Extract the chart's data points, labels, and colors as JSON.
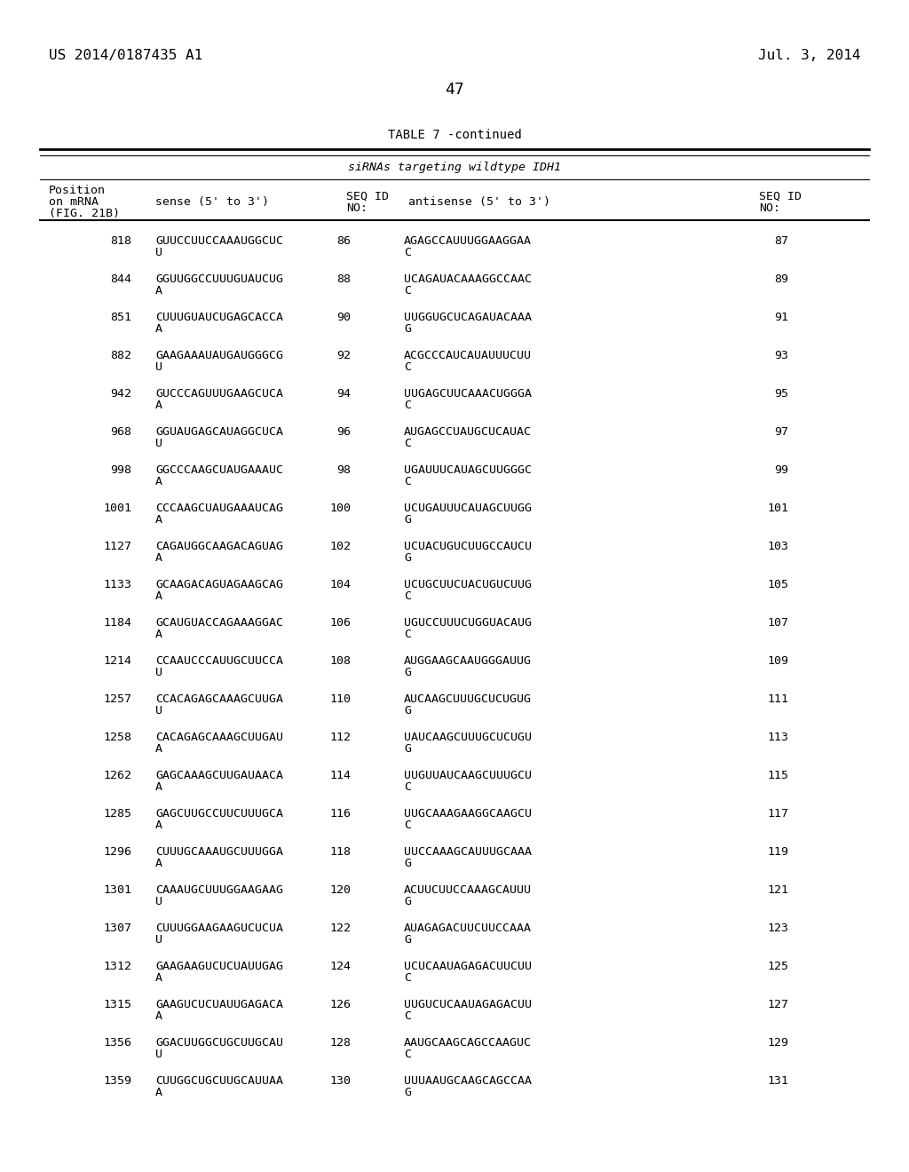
{
  "header_left": "US 2014/0187435 A1",
  "header_right": "Jul. 3, 2014",
  "page_number": "47",
  "table_title": "TABLE 7 -continued",
  "table_subtitle": "siRNAs targeting wildtype IDH1",
  "rows": [
    [
      "818",
      "GUUCCUUCCAAAUGGCUC\nU",
      "86",
      "AGAGCCAUUUGGAAGGAA\nC",
      "87"
    ],
    [
      "844",
      "GGUUGGCCUUUGUAUCUG\nA",
      "88",
      "UCAGAUACAAAGGCCAAC\nC",
      "89"
    ],
    [
      "851",
      "CUUUGUAUCUGAGCACCA\nA",
      "90",
      "UUGGUGCUCAGAUACAAA\nG",
      "91"
    ],
    [
      "882",
      "GAAGAAAUAUGAUGGGCG\nU",
      "92",
      "ACGCCCAUCAUAUUUCUU\nC",
      "93"
    ],
    [
      "942",
      "GUCCCAGUUUGAAGCUCA\nA",
      "94",
      "UUGAGCUUCAAACUGGGA\nC",
      "95"
    ],
    [
      "968",
      "GGUAUGAGCAUAGGCUCA\nU",
      "96",
      "AUGAGCCUAUGCUCAUAC\nC",
      "97"
    ],
    [
      "998",
      "GGCCCAAGCUAUGAAAUC\nA",
      "98",
      "UGAUUUCAUAGCUUGGGC\nC",
      "99"
    ],
    [
      "1001",
      "CCCAAGCUAUGAAAUCAG\nA",
      "100",
      "UCUGAUUUCAUAGCUUGG\nG",
      "101"
    ],
    [
      "1127",
      "CAGAUGGCAAGACAGUAG\nA",
      "102",
      "UCUACUGUCUUGCCAUCU\nG",
      "103"
    ],
    [
      "1133",
      "GCAAGACAGUAGAAGCAG\nA",
      "104",
      "UCUGCUUCUACUGUCUUG\nC",
      "105"
    ],
    [
      "1184",
      "GCAUGUACCAGAAAGGAC\nA",
      "106",
      "UGUCCUUUCUGGUACAUG\nC",
      "107"
    ],
    [
      "1214",
      "CCAAUCCCAUUGCUUCCA\nU",
      "108",
      "AUGGAAGCAAUGGGAUUG\nG",
      "109"
    ],
    [
      "1257",
      "CCACAGAGCAAAGCUUGA\nU",
      "110",
      "AUCAAGCUUUGCUCUGUG\nG",
      "111"
    ],
    [
      "1258",
      "CACAGAGCAAAGCUUGAU\nA",
      "112",
      "UAUCAAGCUUUGCUCUGU\nG",
      "113"
    ],
    [
      "1262",
      "GAGCAAAGCUUGAUAACA\nA",
      "114",
      "UUGUUAUCAAGCUUUGCU\nC",
      "115"
    ],
    [
      "1285",
      "GAGCUUGCCUUCUUUGCA\nA",
      "116",
      "UUGCAAAGAAGGCAAGCU\nC",
      "117"
    ],
    [
      "1296",
      "CUUUGCAAAUGCUUUGGA\nA",
      "118",
      "UUCCAAAGCAUUUGCAAA\nG",
      "119"
    ],
    [
      "1301",
      "CAAAUGCUUUGGAAGAAG\nU",
      "120",
      "ACUUCUUCCAAAGCAUUU\nG",
      "121"
    ],
    [
      "1307",
      "CUUUGGAAGAAGUCUCUA\nU",
      "122",
      "AUAGAGACUUCUUCCAAA\nG",
      "123"
    ],
    [
      "1312",
      "GAAGAAGUCUCUAUUGAG\nA",
      "124",
      "UCUCAAUAGAGACUUCUU\nC",
      "125"
    ],
    [
      "1315",
      "GAAGUCUCUAUUGAGACA\nA",
      "126",
      "UUGUCUCAAUAGAGACUU\nC",
      "127"
    ],
    [
      "1356",
      "GGACUUGGCUGCUUGCAU\nU",
      "128",
      "AAUGCAAGCAGCCAAGUC\nC",
      "129"
    ],
    [
      "1359",
      "CUUGGCUGCUUGCAUUAA\nA",
      "130",
      "UUUAAUGCAAGCAGCCAA\nG",
      "131"
    ]
  ],
  "background_color": "#ffffff",
  "text_color": "#000000"
}
